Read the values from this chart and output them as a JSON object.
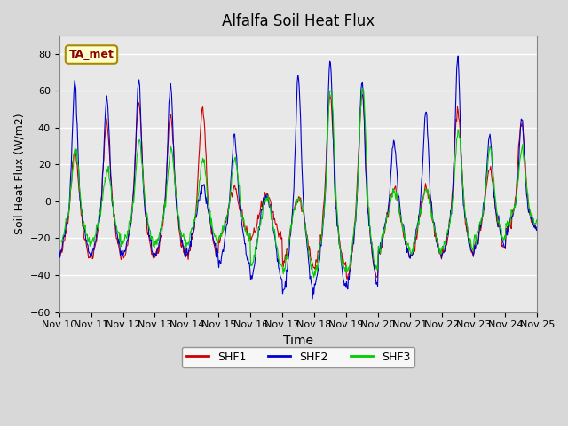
{
  "title": "Alfalfa Soil Heat Flux",
  "xlabel": "Time",
  "ylabel": "Soil Heat Flux (W/m2)",
  "ylim": [
    -60,
    90
  ],
  "yticks": [
    -60,
    -40,
    -20,
    0,
    20,
    40,
    60,
    80
  ],
  "legend_labels": [
    "SHF1",
    "SHF2",
    "SHF3"
  ],
  "legend_colors": [
    "#cc0000",
    "#0000cc",
    "#00cc00"
  ],
  "line_colors": [
    "#cc0000",
    "#0000cc",
    "#00cc00"
  ],
  "annotation_text": "TA_met",
  "annotation_color": "#8b0000",
  "annotation_bg": "#ffffcc",
  "n_days": 15,
  "x_tick_labels": [
    "Nov 10",
    "Nov 11",
    "Nov 12",
    "Nov 13",
    "Nov 14",
    "Nov 15",
    "Nov 16",
    "Nov 17",
    "Nov 18",
    "Nov 19",
    "Nov 20",
    "Nov 21",
    "Nov 22",
    "Nov 23",
    "Nov 24",
    "Nov 25"
  ],
  "figsize": [
    6.4,
    4.8
  ],
  "dpi": 100
}
